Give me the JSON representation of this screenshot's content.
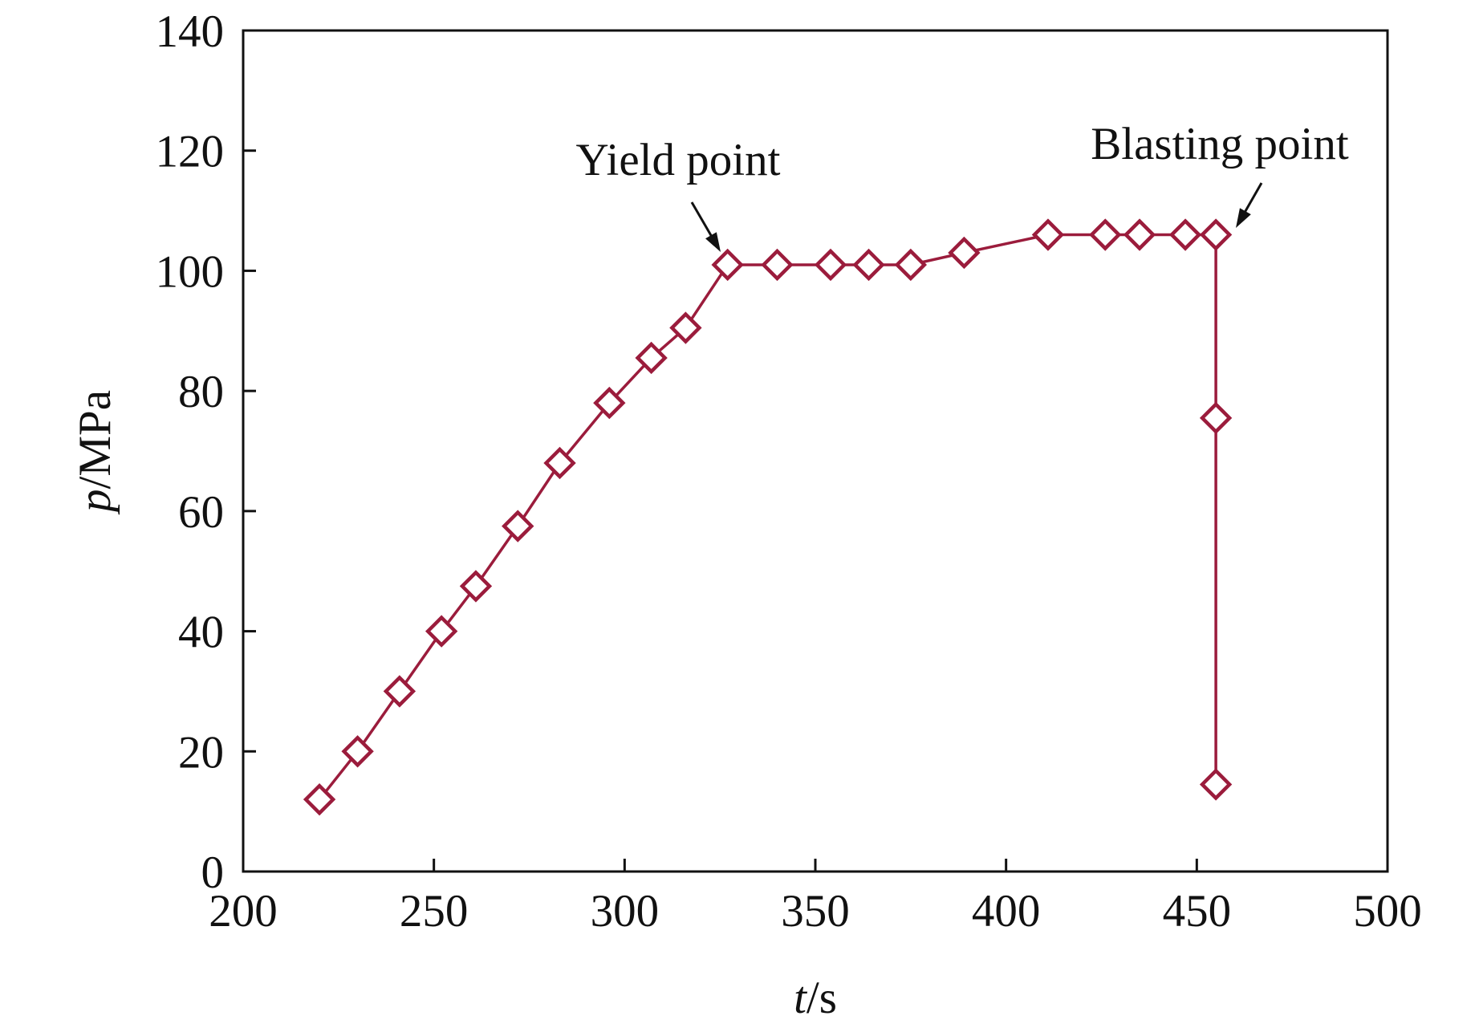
{
  "chart_data": {
    "type": "line",
    "xlabel": {
      "var": "t",
      "unit": "/s"
    },
    "ylabel": {
      "var": "p",
      "unit": "/MPa"
    },
    "xlim": [
      200,
      500
    ],
    "ylim": [
      0,
      140
    ],
    "xticks": [
      200,
      250,
      300,
      350,
      400,
      450,
      500
    ],
    "yticks": [
      0,
      20,
      40,
      60,
      80,
      100,
      120,
      140
    ],
    "grid": false,
    "legend": "none",
    "colors": {
      "series": "#9b1c3c",
      "axis": "#111111"
    },
    "marker": "open-diamond",
    "series": [
      {
        "points": [
          [
            220,
            12
          ],
          [
            230,
            20
          ],
          [
            241,
            30
          ],
          [
            252,
            40
          ],
          [
            261,
            47.5
          ],
          [
            272,
            57.5
          ],
          [
            283,
            68
          ],
          [
            296,
            78
          ],
          [
            307,
            85.5
          ],
          [
            316,
            90.5
          ],
          [
            327,
            101
          ],
          [
            340,
            101
          ],
          [
            354,
            101
          ],
          [
            364,
            101
          ],
          [
            375,
            101
          ],
          [
            389,
            103
          ],
          [
            411,
            106
          ],
          [
            426,
            106
          ],
          [
            435,
            106
          ],
          [
            447,
            106
          ],
          [
            455,
            106
          ],
          [
            455,
            75.5
          ],
          [
            455,
            14.5
          ]
        ]
      }
    ],
    "annotations": [
      {
        "text": "Yield point",
        "target": [
          327,
          101
        ]
      },
      {
        "text": "Blasting point",
        "target": [
          455,
          106
        ]
      }
    ]
  }
}
